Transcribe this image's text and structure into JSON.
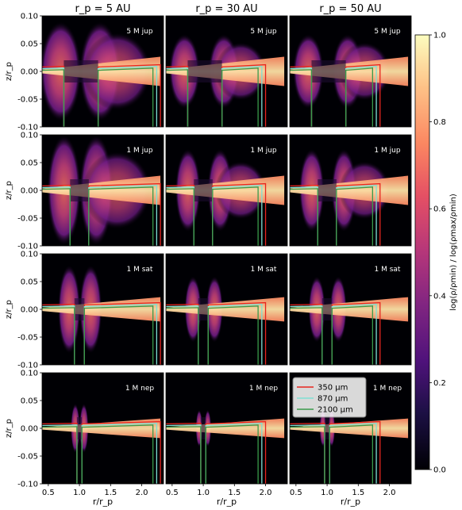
{
  "chart_data": {
    "type": "heatmap",
    "grid": {
      "rows": 4,
      "cols": 3
    },
    "column_titles": [
      "r_p = 5 AU",
      "r_p = 30 AU",
      "r_p = 50 AU"
    ],
    "row_masses": [
      "5 M_jup",
      "1 M_jup",
      "1 M_sat",
      "1 M_nep"
    ],
    "xlabel": "r/r_p",
    "ylabel": "z/r_p",
    "xlim": [
      0.4,
      2.35
    ],
    "ylim": [
      -0.1,
      0.1
    ],
    "xticks": [
      "0.5",
      "1.0",
      "1.5",
      "2.0"
    ],
    "yticks": [
      "0.10",
      "0.05",
      "0.00",
      "-0.05",
      "-0.10"
    ],
    "colorbar": {
      "label": "log(ρ/ρmin) / log(ρmax/ρmin)",
      "ticks": [
        "0.0",
        "0.2",
        "0.4",
        "0.6",
        "0.8",
        "1.0"
      ],
      "range": [
        0.0,
        1.0
      ],
      "colormap": "magma"
    },
    "legend": {
      "placement": "row 4, column 3 (top-left)",
      "entries": [
        {
          "label": "350 μm",
          "color": "#e8251f"
        },
        {
          "label": "870 μm",
          "color": "#7fe0d4"
        },
        {
          "label": "2100 μm",
          "color": "#3a9a4a"
        }
      ]
    },
    "planet_radius": 1.0,
    "gap_edges_approx": {
      "5 M_jup": [
        0.75,
        1.3
      ],
      "1 M_jup": [
        0.85,
        1.15
      ],
      "1 M_sat": [
        0.92,
        1.08
      ],
      "1 M_nep": [
        0.96,
        1.04
      ]
    }
  }
}
